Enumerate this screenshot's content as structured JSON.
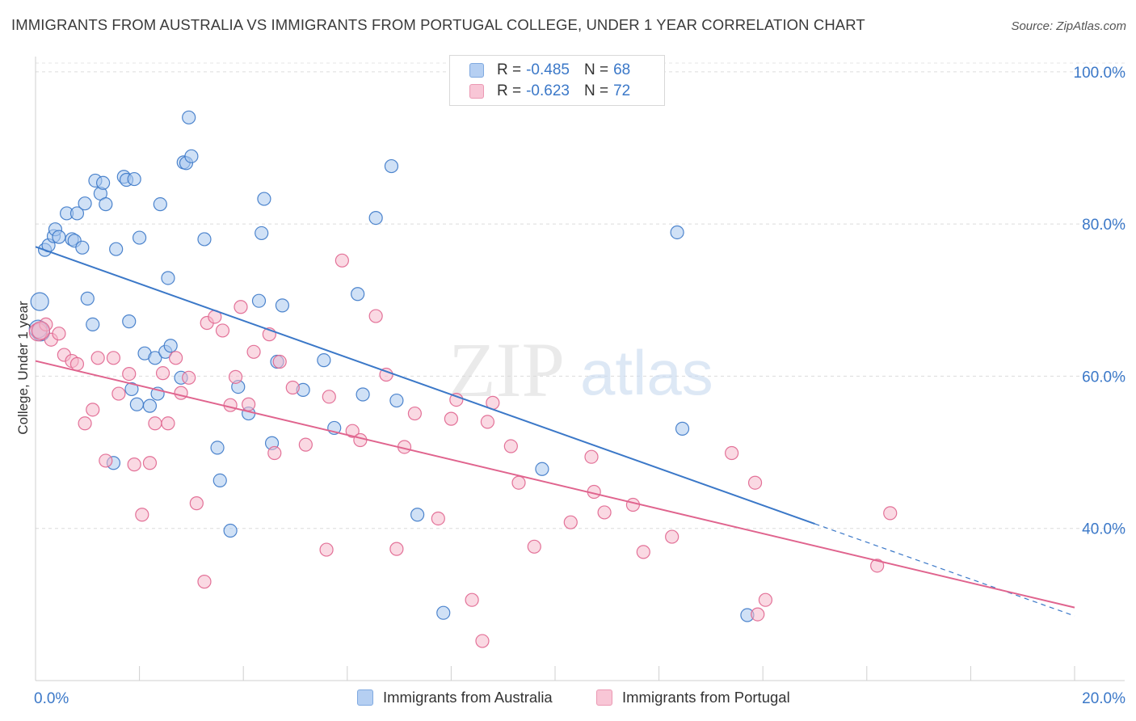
{
  "title": "IMMIGRANTS FROM AUSTRALIA VS IMMIGRANTS FROM PORTUGAL COLLEGE, UNDER 1 YEAR CORRELATION CHART",
  "source": "Source: ZipAtlas.com",
  "watermark": {
    "zip": "ZIP",
    "atlas": "atlas"
  },
  "colors": {
    "australia": "#3b78c8",
    "australia_fill": "#a9c8ef",
    "portugal": "#e0648e",
    "portugal_fill": "#f5b9cc",
    "tick": "#3b78c8"
  },
  "legend": {
    "rows": [
      {
        "r_label": "R =",
        "r_value": "-0.485",
        "n_label": "N =",
        "n_value": "68"
      },
      {
        "r_label": "R =",
        "r_value": "-0.623",
        "n_label": "N =",
        "n_value": "72"
      }
    ]
  },
  "chart_data": {
    "type": "scatter",
    "title": "IMMIGRANTS FROM AUSTRALIA VS IMMIGRANTS FROM PORTUGAL COLLEGE, UNDER 1 YEAR CORRELATION CHART",
    "xlabel": "",
    "ylabel": "College, Under 1 year",
    "xlim": [
      0,
      20
    ],
    "ylim": [
      20,
      102
    ],
    "x_tick_labels": [
      "0.0%",
      "20.0%"
    ],
    "y_ticks": [
      40,
      60,
      80,
      100
    ],
    "y_tick_labels": [
      "40.0%",
      "60.0%",
      "80.0%",
      "100.0%"
    ],
    "grid": "horizontal dashed",
    "legend_position": "top-center",
    "series": [
      {
        "name": "Immigrants from Australia",
        "trend": {
          "x0": 0,
          "y0": 77.0,
          "x1": 15.0,
          "y1": 40.6,
          "dash_to_x": 20.0,
          "dash_to_y": 28.5
        },
        "points": [
          [
            0.08,
            69.8
          ],
          [
            0.1,
            65.8
          ],
          [
            0.18,
            76.6
          ],
          [
            0.25,
            77.2
          ],
          [
            0.35,
            78.4
          ],
          [
            0.38,
            79.3
          ],
          [
            0.45,
            78.3
          ],
          [
            0.6,
            81.4
          ],
          [
            0.7,
            78.0
          ],
          [
            0.75,
            77.8
          ],
          [
            0.8,
            81.4
          ],
          [
            0.9,
            76.9
          ],
          [
            0.95,
            82.7
          ],
          [
            1.0,
            70.2
          ],
          [
            1.1,
            66.8
          ],
          [
            1.15,
            85.7
          ],
          [
            1.25,
            84.0
          ],
          [
            1.3,
            85.4
          ],
          [
            1.35,
            82.6
          ],
          [
            1.5,
            48.6
          ],
          [
            1.55,
            76.7
          ],
          [
            1.7,
            86.2
          ],
          [
            1.75,
            85.8
          ],
          [
            1.8,
            67.2
          ],
          [
            1.85,
            58.3
          ],
          [
            1.9,
            85.9
          ],
          [
            1.95,
            56.3
          ],
          [
            2.0,
            78.2
          ],
          [
            2.1,
            63.0
          ],
          [
            2.2,
            56.1
          ],
          [
            2.3,
            62.4
          ],
          [
            2.35,
            57.7
          ],
          [
            2.4,
            82.6
          ],
          [
            2.5,
            63.2
          ],
          [
            2.55,
            72.9
          ],
          [
            2.6,
            64.0
          ],
          [
            2.8,
            59.8
          ],
          [
            2.85,
            88.1
          ],
          [
            2.9,
            88.0
          ],
          [
            2.95,
            94.0
          ],
          [
            3.0,
            88.9
          ],
          [
            3.25,
            78.0
          ],
          [
            3.5,
            50.6
          ],
          [
            3.55,
            46.3
          ],
          [
            3.75,
            39.7
          ],
          [
            3.9,
            58.6
          ],
          [
            4.1,
            55.1
          ],
          [
            4.3,
            69.9
          ],
          [
            4.35,
            78.8
          ],
          [
            4.4,
            83.3
          ],
          [
            4.55,
            51.2
          ],
          [
            4.65,
            61.9
          ],
          [
            4.75,
            69.3
          ],
          [
            5.15,
            58.2
          ],
          [
            5.55,
            62.1
          ],
          [
            5.75,
            53.2
          ],
          [
            6.2,
            70.8
          ],
          [
            6.3,
            57.6
          ],
          [
            6.55,
            80.8
          ],
          [
            6.85,
            87.6
          ],
          [
            6.95,
            56.8
          ],
          [
            7.35,
            41.8
          ],
          [
            7.85,
            28.9
          ],
          [
            9.75,
            47.8
          ],
          [
            12.35,
            78.9
          ],
          [
            12.45,
            53.1
          ],
          [
            13.7,
            28.6
          ],
          [
            0.05,
            66.2
          ]
        ]
      },
      {
        "name": "Immigrants from Portugal",
        "trend": {
          "x0": 0,
          "y0": 62.0,
          "x1": 20.0,
          "y1": 29.6
        },
        "points": [
          [
            0.05,
            65.8
          ],
          [
            0.2,
            66.8
          ],
          [
            0.3,
            64.8
          ],
          [
            0.45,
            65.6
          ],
          [
            0.55,
            62.8
          ],
          [
            0.7,
            62.0
          ],
          [
            0.8,
            61.6
          ],
          [
            0.95,
            53.8
          ],
          [
            1.1,
            55.6
          ],
          [
            1.2,
            62.4
          ],
          [
            1.35,
            48.9
          ],
          [
            1.5,
            62.4
          ],
          [
            1.6,
            57.7
          ],
          [
            1.8,
            60.3
          ],
          [
            1.9,
            48.4
          ],
          [
            2.05,
            41.8
          ],
          [
            2.2,
            48.6
          ],
          [
            2.3,
            53.8
          ],
          [
            2.45,
            60.4
          ],
          [
            2.55,
            53.8
          ],
          [
            2.7,
            62.4
          ],
          [
            2.8,
            57.8
          ],
          [
            2.95,
            59.8
          ],
          [
            3.1,
            43.3
          ],
          [
            3.25,
            33.0
          ],
          [
            3.3,
            67.0
          ],
          [
            3.45,
            67.8
          ],
          [
            3.6,
            66.0
          ],
          [
            3.75,
            56.2
          ],
          [
            3.85,
            59.9
          ],
          [
            3.95,
            69.1
          ],
          [
            4.1,
            56.3
          ],
          [
            4.2,
            63.2
          ],
          [
            4.5,
            65.5
          ],
          [
            4.6,
            49.9
          ],
          [
            4.7,
            61.9
          ],
          [
            4.95,
            58.5
          ],
          [
            5.2,
            51.0
          ],
          [
            5.6,
            37.2
          ],
          [
            5.65,
            57.3
          ],
          [
            5.9,
            75.2
          ],
          [
            6.1,
            52.8
          ],
          [
            6.25,
            51.6
          ],
          [
            6.55,
            67.9
          ],
          [
            6.75,
            60.2
          ],
          [
            6.95,
            37.3
          ],
          [
            7.1,
            50.7
          ],
          [
            7.3,
            55.1
          ],
          [
            7.75,
            41.3
          ],
          [
            8.0,
            54.4
          ],
          [
            8.1,
            56.9
          ],
          [
            8.4,
            30.6
          ],
          [
            8.6,
            25.2
          ],
          [
            8.7,
            54.0
          ],
          [
            8.8,
            56.5
          ],
          [
            9.15,
            50.8
          ],
          [
            9.3,
            46.0
          ],
          [
            9.6,
            37.6
          ],
          [
            10.3,
            40.8
          ],
          [
            10.7,
            49.4
          ],
          [
            10.75,
            44.8
          ],
          [
            10.95,
            42.1
          ],
          [
            11.5,
            43.1
          ],
          [
            11.7,
            36.9
          ],
          [
            12.25,
            38.9
          ],
          [
            13.4,
            49.9
          ],
          [
            13.85,
            46.0
          ],
          [
            13.9,
            28.7
          ],
          [
            14.05,
            30.6
          ],
          [
            16.2,
            35.1
          ],
          [
            16.45,
            42.0
          ],
          [
            0.1,
            66.0
          ]
        ]
      }
    ]
  }
}
